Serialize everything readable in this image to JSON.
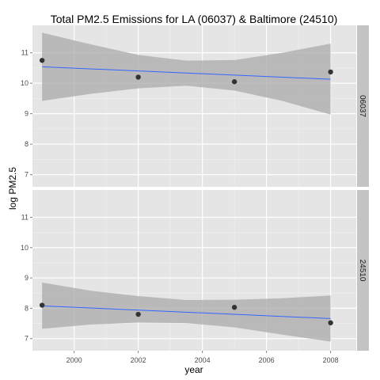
{
  "chart_data": {
    "type": "scatter",
    "title": "Total PM2.5 Emissions for LA (06037) & Baltimore (24510)",
    "xlabel": "year",
    "ylabel": "log PM2.5",
    "xlim": [
      1998.7,
      2008.8
    ],
    "ylim": [
      6.6,
      11.9
    ],
    "x_ticks": [
      2000,
      2002,
      2004,
      2006,
      2008
    ],
    "y_ticks": [
      7,
      8,
      9,
      10,
      11
    ],
    "grid": true,
    "colors": {
      "panel_background": "#e5e5e5",
      "strip_background": "#c4c4c4",
      "grid": "#ffffff",
      "points": "#333333",
      "fit_line": "#3366ff",
      "confidence_band": "#aaaaaa"
    },
    "facets": [
      {
        "strip": "06037",
        "points": [
          {
            "x": 1999,
            "y": 10.75
          },
          {
            "x": 2002,
            "y": 10.2
          },
          {
            "x": 2005,
            "y": 10.05
          },
          {
            "x": 2008,
            "y": 10.37
          }
        ],
        "fit": {
          "x": [
            1999,
            2008
          ],
          "y": [
            10.54,
            10.13
          ]
        },
        "band": {
          "x": [
            1999,
            2000.5,
            2002,
            2003.5,
            2005,
            2006.5,
            2008
          ],
          "upper": [
            11.66,
            11.28,
            10.93,
            10.74,
            10.76,
            11.0,
            11.3
          ],
          "lower": [
            9.42,
            9.65,
            9.83,
            9.92,
            9.76,
            9.42,
            8.97
          ]
        }
      },
      {
        "strip": "24510",
        "points": [
          {
            "x": 1999,
            "y": 8.1
          },
          {
            "x": 2002,
            "y": 7.8
          },
          {
            "x": 2005,
            "y": 8.03
          },
          {
            "x": 2008,
            "y": 7.52
          }
        ],
        "fit": {
          "x": [
            1999,
            2008
          ],
          "y": [
            8.08,
            7.66
          ]
        },
        "band": {
          "x": [
            1999,
            2000.5,
            2002,
            2003.5,
            2005,
            2006.5,
            2008
          ],
          "upper": [
            8.85,
            8.58,
            8.4,
            8.27,
            8.28,
            8.33,
            8.42
          ],
          "lower": [
            7.32,
            7.46,
            7.53,
            7.51,
            7.37,
            7.13,
            6.9
          ]
        }
      }
    ]
  }
}
